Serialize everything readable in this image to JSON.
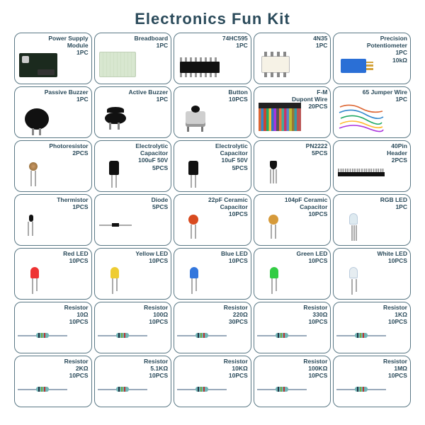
{
  "title": "Electronics Fun Kit",
  "colors": {
    "text": "#2a4a5a",
    "border": "#5a7885",
    "bg": "#ffffff"
  },
  "grid": {
    "cols": 5,
    "rows": 7
  },
  "items": [
    {
      "lines": [
        "Power Supply",
        "Module",
        "1PC"
      ],
      "icon": "psm"
    },
    {
      "lines": [
        "Breadboard",
        "1PC"
      ],
      "icon": "bread"
    },
    {
      "lines": [
        "74HC595",
        "1PC"
      ],
      "icon": "dip"
    },
    {
      "lines": [
        "4N35",
        "1PC"
      ],
      "icon": "opto"
    },
    {
      "lines": [
        "Precision",
        "Potentiometer",
        "1PC",
        "10kΩ"
      ],
      "icon": "pot"
    },
    {
      "lines": [
        "Passive Buzzer",
        "1PC"
      ],
      "icon": "buzz"
    },
    {
      "lines": [
        "Active Buzzer",
        "1PC"
      ],
      "icon": "abuzz"
    },
    {
      "lines": [
        "Button",
        "10PCS"
      ],
      "icon": "btn"
    },
    {
      "lines": [
        "F-M",
        "Dupont Wire",
        "20PCS"
      ],
      "icon": "dupont"
    },
    {
      "lines": [
        "65 Jumper Wire",
        "1PC"
      ],
      "icon": "jumper"
    },
    {
      "lines": [
        "Photoresistor",
        "2PCS"
      ],
      "icon": "photo"
    },
    {
      "lines": [
        "Electrolytic",
        "Capacitor",
        "100uF 50V",
        "5PCS"
      ],
      "icon": "ecap"
    },
    {
      "lines": [
        "Electrolytic",
        "Capacitor",
        "10uF 50V",
        "5PCS"
      ],
      "icon": "ecap"
    },
    {
      "lines": [
        "PN2222",
        "5PCS"
      ],
      "icon": "pn"
    },
    {
      "lines": [
        "40Pin",
        "Header",
        "2PCS"
      ],
      "icon": "header"
    },
    {
      "lines": [
        "Thermistor",
        "1PCS"
      ],
      "icon": "therm"
    },
    {
      "lines": [
        "Diode",
        "5PCS"
      ],
      "icon": "diode"
    },
    {
      "lines": [
        "22pF Ceramic",
        "Capacitor",
        "10PCS"
      ],
      "icon": "ccap red"
    },
    {
      "lines": [
        "104pF Ceramic",
        "Capacitor",
        "10PCS"
      ],
      "icon": "ccap tan"
    },
    {
      "lines": [
        "RGB LED",
        "1PC"
      ],
      "icon": "led rgb"
    },
    {
      "lines": [
        "Red LED",
        "10PCS"
      ],
      "icon": "led red"
    },
    {
      "lines": [
        "Yellow LED",
        "10PCS"
      ],
      "icon": "led yellow"
    },
    {
      "lines": [
        "Blue LED",
        "10PCS"
      ],
      "icon": "led blue"
    },
    {
      "lines": [
        "Green LED",
        "10PCS"
      ],
      "icon": "led green"
    },
    {
      "lines": [
        "White LED",
        "10PCS"
      ],
      "icon": "led white"
    },
    {
      "lines": [
        "Resistor",
        "10Ω",
        "10PCS"
      ],
      "icon": "res"
    },
    {
      "lines": [
        "Resistor",
        "100Ω",
        "10PCS"
      ],
      "icon": "res"
    },
    {
      "lines": [
        "Resistor",
        "220Ω",
        "30PCS"
      ],
      "icon": "res"
    },
    {
      "lines": [
        "Resistor",
        "330Ω",
        "10PCS"
      ],
      "icon": "res"
    },
    {
      "lines": [
        "Resistor",
        "1KΩ",
        "10PCS"
      ],
      "icon": "res"
    },
    {
      "lines": [
        "Resistor",
        "2KΩ",
        "10PCS"
      ],
      "icon": "res"
    },
    {
      "lines": [
        "Resistor",
        "5.1KΩ",
        "10PCS"
      ],
      "icon": "res"
    },
    {
      "lines": [
        "Resistor",
        "10KΩ",
        "10PCS"
      ],
      "icon": "res"
    },
    {
      "lines": [
        "Resistor",
        "100KΩ",
        "10PCS"
      ],
      "icon": "res"
    },
    {
      "lines": [
        "Resistor",
        "1MΩ",
        "10PCS"
      ],
      "icon": "res"
    }
  ]
}
